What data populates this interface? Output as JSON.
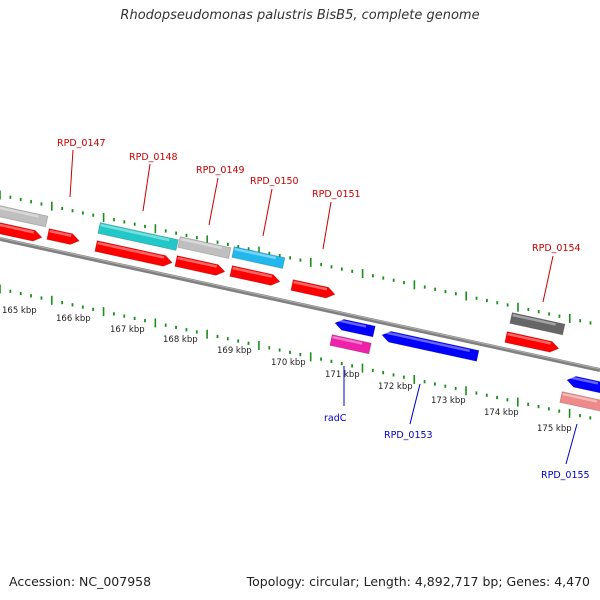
{
  "header": {
    "title": "Rhodopseudomonas palustris BisB5, complete genome"
  },
  "footer": {
    "accession": "Accession: NC_007958",
    "summary": "Topology: circular; Length: 4,892,717 bp; Genes: 4,470"
  },
  "colors": {
    "backbone": "#808080",
    "tick": "#1a8f1a",
    "forward_label": "#cc0000",
    "reverse_label": "#0000cc",
    "forward_cds": "#ff0000",
    "reverse_cds": "#0000ff",
    "teal_feature": "#22c8c8",
    "light_gray_feature": "#bfbfbf",
    "sky_feature": "#22b8ee",
    "dark_gray_feature": "#666666",
    "magenta_feature": "#ee22aa",
    "pink_feature": "#ee8a8a"
  },
  "scale": {
    "unit": "kbp",
    "tick_labels": [
      "165 kbp",
      "166 kbp",
      "167 kbp",
      "168 kbp",
      "169 kbp",
      "170 kbp",
      "171 kbp",
      "172 kbp",
      "173 kbp",
      "174 kbp",
      "175 kbp"
    ]
  },
  "genes": [
    {
      "label": "RPD_0147",
      "strand": "forward"
    },
    {
      "label": "RPD_0148",
      "strand": "forward"
    },
    {
      "label": "RPD_0149",
      "strand": "forward"
    },
    {
      "label": "RPD_0150",
      "strand": "forward"
    },
    {
      "label": "RPD_0151",
      "strand": "forward"
    },
    {
      "label": "RPD_0154",
      "strand": "forward"
    },
    {
      "label": "radC",
      "strand": "reverse"
    },
    {
      "label": "RPD_0153",
      "strand": "reverse"
    },
    {
      "label": "RPD_0155",
      "strand": "reverse"
    }
  ]
}
